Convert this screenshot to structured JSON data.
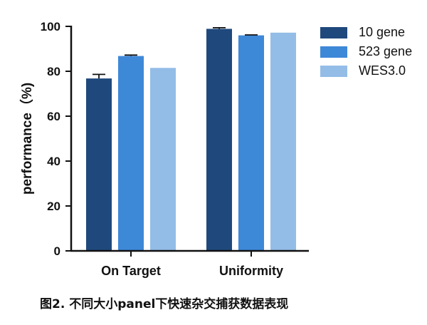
{
  "chart_data": {
    "type": "bar",
    "categories": [
      "On Target",
      "Uniformity"
    ],
    "series": [
      {
        "name": "10 gene",
        "color": "#1f497d",
        "values": [
          76.8,
          98.9
        ],
        "errors": [
          1.8,
          0.5
        ]
      },
      {
        "name": "523 gene",
        "color": "#3e88d8",
        "values": [
          86.8,
          96.0
        ],
        "errors": [
          0.4,
          0.2
        ]
      },
      {
        "name": "WES3.0",
        "color": "#93bde7",
        "values": [
          81.5,
          97.2
        ],
        "errors": [
          0,
          0
        ]
      }
    ],
    "ylabel": "performance（%)",
    "xlabel": "",
    "ylim": [
      0,
      100
    ],
    "yticks": [
      0,
      20,
      40,
      60,
      80,
      100
    ],
    "grid": false,
    "legend_position": "top-right"
  },
  "caption": "图2. 不同大小panel下快速杂交捕获数据表现"
}
